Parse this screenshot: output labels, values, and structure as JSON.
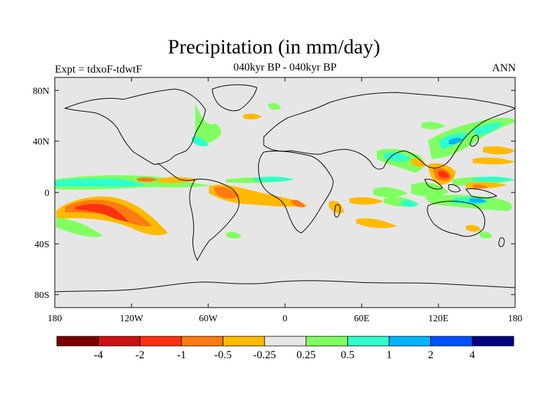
{
  "title": "Precipitation (in mm/day)",
  "subtitle": "040kyr BP - 040kyr BP",
  "left_label": "Expt = tdxoF-tdwtF",
  "right_label": "ANN",
  "y_ticks": [
    "80N",
    "40N",
    "0",
    "40S",
    "80S"
  ],
  "x_ticks": [
    "180",
    "120W",
    "60W",
    "0",
    "60E",
    "120E",
    "180"
  ],
  "colorbar": {
    "colors": [
      "#7a0000",
      "#cc1010",
      "#ff3010",
      "#ff7a10",
      "#ffba00",
      "#e6e6e6",
      "#80ff60",
      "#2effcc",
      "#00b4ff",
      "#0050ff",
      "#000080"
    ],
    "labels": [
      "-4",
      "-2",
      "-1",
      "-0.5",
      "-0.25",
      "0.25",
      "0.5",
      "1",
      "2",
      "4"
    ]
  },
  "colors": {
    "map_background": "#e6e6e6",
    "coastline": "#000000"
  }
}
